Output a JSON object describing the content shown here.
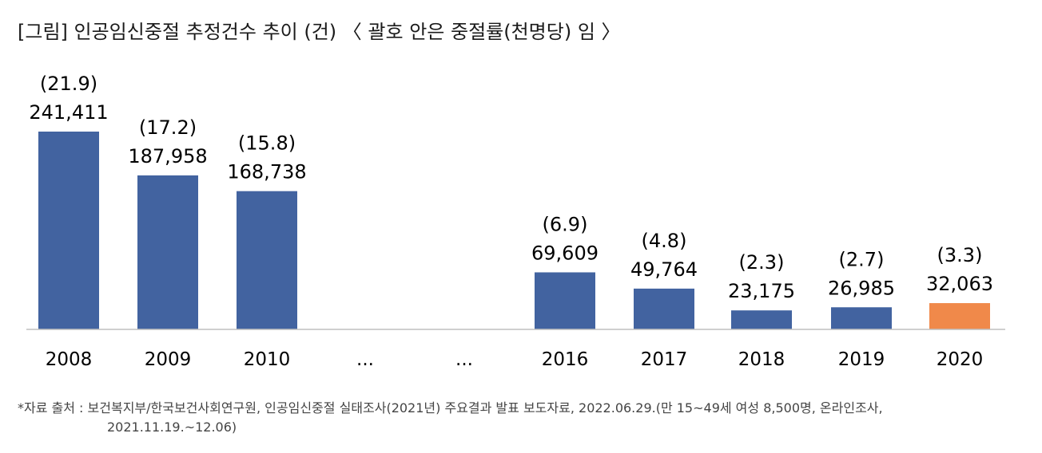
{
  "chart_data": {
    "type": "bar",
    "title": "[그림] 인공임신중절 추정건수 추이 (건)  〈 괄호 안은 중절률(천명당) 임 〉",
    "categories": [
      "2008",
      "2009",
      "2010",
      "...",
      "...",
      "2016",
      "2017",
      "2018",
      "2019",
      "2020"
    ],
    "values": [
      241411,
      187958,
      168738,
      null,
      null,
      69609,
      49764,
      23175,
      26985,
      32063
    ],
    "value_labels": [
      "241,411",
      "187,958",
      "168,738",
      "",
      "",
      "69,609",
      "49,764",
      "23,175",
      "26,985",
      "32,063"
    ],
    "rate_labels": [
      "(21.9)",
      "(17.2)",
      "(15.8)",
      "",
      "",
      "(6.9)",
      "(4.8)",
      "(2.3)",
      "(2.7)",
      "(3.3)"
    ],
    "ylim": [
      0,
      241411
    ],
    "grid": false,
    "colors": {
      "bar": "#4263a0",
      "highlight_bar": "#f0894a",
      "highlight_label": "#1f3864",
      "axis": "#bfbfbf"
    },
    "label_colors": [
      "#000000",
      "#000000",
      "#000000",
      "",
      "",
      "#000000",
      "#000000",
      "#000000",
      "#1f3864",
      "#1f3864"
    ],
    "bar_colors": [
      "#4263a0",
      "#4263a0",
      "#4263a0",
      "",
      "",
      "#4263a0",
      "#4263a0",
      "#4263a0",
      "#4263a0",
      "#f0894a"
    ]
  },
  "source": {
    "line1": "*자료 출처 : 보건복지부/한국보건사회연구원, 인공임신중절 실태조사(2021년) 주요결과 발표 보도자료, 2022.06.29.(만 15~49세 여성 8,500명, 온라인조사,",
    "line2": "2021.11.19.~12.06)"
  }
}
